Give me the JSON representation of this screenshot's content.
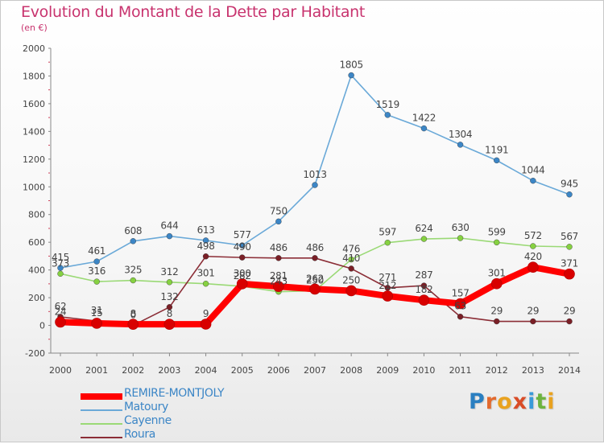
{
  "header": {
    "title": "Evolution du Montant de la Dette par Habitant",
    "subtitle": "(en €)"
  },
  "brand": {
    "letters": [
      "P",
      "r",
      "o",
      "x",
      "i",
      "t",
      "i"
    ],
    "colors": [
      "#2a7fc1",
      "#e36a2e",
      "#e9a21f",
      "#d94c27",
      "#3a9ad9",
      "#6db33f",
      "#e9a21f"
    ]
  },
  "chart_data": {
    "type": "line",
    "title": "Evolution du Montant de la Dette par Habitant",
    "subtitle": "(en €)",
    "xlabel": "",
    "ylabel": "",
    "ylim": [
      -200,
      2000
    ],
    "yticks": [
      -200,
      0,
      200,
      400,
      600,
      800,
      1000,
      1200,
      1400,
      1600,
      1800,
      2000
    ],
    "grid": false,
    "legend_position": "bottom-left",
    "categories": [
      "2000",
      "2001",
      "2002",
      "2003",
      "2004",
      "2005",
      "2006",
      "2007",
      "2008",
      "2009",
      "2010",
      "2011",
      "2012",
      "2013",
      "2014"
    ],
    "series": [
      {
        "name": "REMIRE-MONTJOLY",
        "color": "#ff0000",
        "marker": "#d80000",
        "values": [
          24,
          15,
          8,
          8,
          9,
          300,
          281,
          262,
          250,
          212,
          182,
          157,
          301,
          420,
          371
        ]
      },
      {
        "name": "Matoury",
        "color": "#6aa9d8",
        "marker": "#3c86c6",
        "values": [
          415,
          461,
          608,
          644,
          613,
          577,
          750,
          1013,
          1805,
          1519,
          1422,
          1304,
          1191,
          1044,
          945
        ]
      },
      {
        "name": "Cayenne",
        "color": "#9ad975",
        "marker": "#86d141",
        "values": [
          373,
          316,
          325,
          312,
          301,
          282,
          243,
          250,
          476,
          597,
          624,
          630,
          599,
          572,
          567
        ]
      },
      {
        "name": "Roura",
        "color": "#8b2d36",
        "marker": "#7a1f26",
        "values": [
          62,
          31,
          0,
          132,
          498,
          490,
          486,
          486,
          410,
          271,
          287,
          63,
          29,
          29,
          29
        ]
      }
    ]
  }
}
